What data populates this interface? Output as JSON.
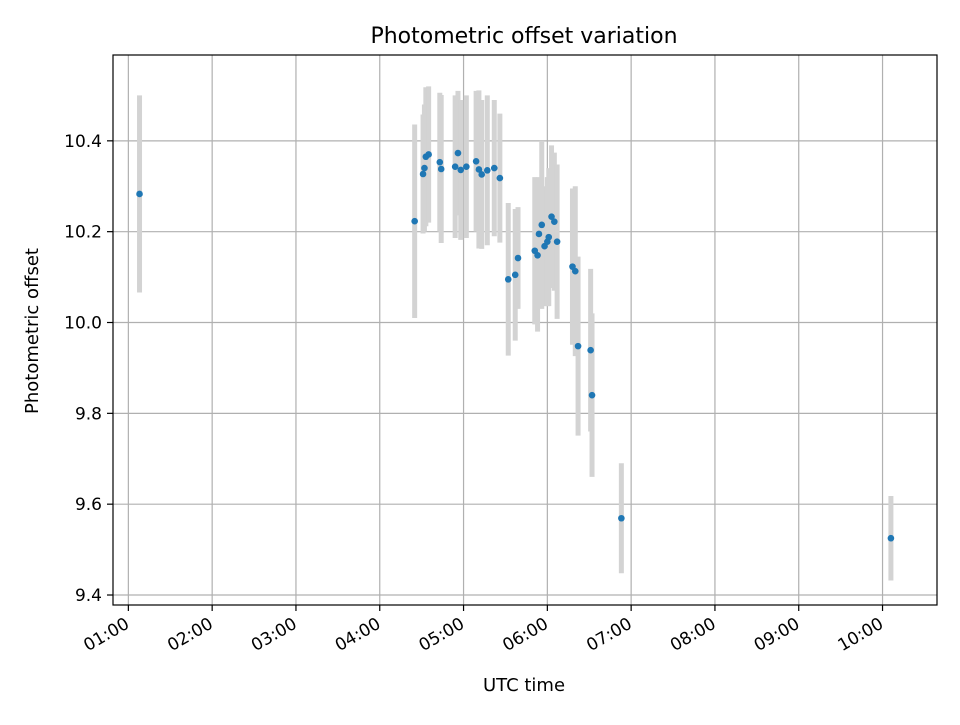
{
  "colors": {
    "point": "#1f77b4",
    "errorbar": "#d3d3d3",
    "grid": "#b0b0b0",
    "axes": "#000000",
    "background": "#ffffff"
  },
  "chart_data": {
    "type": "scatter",
    "title": "Photometric offset variation",
    "xlabel": "UTC time",
    "ylabel": "Photometric offset",
    "grid": true,
    "legend": "none",
    "xlim": [
      "00:49",
      "10:39"
    ],
    "ylim": [
      9.378,
      10.589
    ],
    "x_ticks": [
      "01:00",
      "02:00",
      "03:00",
      "04:00",
      "05:00",
      "06:00",
      "07:00",
      "08:00",
      "09:00",
      "10:00"
    ],
    "y_ticks": [
      "9.4",
      "9.6",
      "9.8",
      "10.0",
      "10.2",
      "10.4"
    ],
    "series": [
      {
        "error_bars": "symmetric",
        "points": [
          {
            "x": "01:08",
            "y": 10.283,
            "err": 0.217
          },
          {
            "x": "04:25",
            "y": 10.223,
            "err": 0.213
          },
          {
            "x": "04:31",
            "y": 10.327,
            "err": 0.131
          },
          {
            "x": "04:32",
            "y": 10.34,
            "err": 0.14
          },
          {
            "x": "04:33",
            "y": 10.365,
            "err": 0.153
          },
          {
            "x": "04:35",
            "y": 10.37,
            "err": 0.15
          },
          {
            "x": "04:43",
            "y": 10.353,
            "err": 0.153
          },
          {
            "x": "04:44",
            "y": 10.338,
            "err": 0.163
          },
          {
            "x": "04:54",
            "y": 10.343,
            "err": 0.157
          },
          {
            "x": "04:56",
            "y": 10.373,
            "err": 0.137
          },
          {
            "x": "04:58",
            "y": 10.336,
            "err": 0.154
          },
          {
            "x": "05:02",
            "y": 10.343,
            "err": 0.157
          },
          {
            "x": "05:09",
            "y": 10.355,
            "err": 0.155
          },
          {
            "x": "05:11",
            "y": 10.337,
            "err": 0.174
          },
          {
            "x": "05:13",
            "y": 10.326,
            "err": 0.164
          },
          {
            "x": "05:17",
            "y": 10.335,
            "err": 0.165
          },
          {
            "x": "05:22",
            "y": 10.34,
            "err": 0.15
          },
          {
            "x": "05:26",
            "y": 10.318,
            "err": 0.142
          },
          {
            "x": "05:32",
            "y": 10.095,
            "err": 0.168
          },
          {
            "x": "05:37",
            "y": 10.105,
            "err": 0.145
          },
          {
            "x": "05:39",
            "y": 10.142,
            "err": 0.112
          },
          {
            "x": "05:51",
            "y": 10.158,
            "err": 0.162
          },
          {
            "x": "05:53",
            "y": 10.148,
            "err": 0.168
          },
          {
            "x": "05:54",
            "y": 10.195,
            "err": 0.125
          },
          {
            "x": "05:56",
            "y": 10.215,
            "err": 0.185
          },
          {
            "x": "05:58",
            "y": 10.168,
            "err": 0.132
          },
          {
            "x": "06:00",
            "y": 10.178,
            "err": 0.142
          },
          {
            "x": "06:01",
            "y": 10.188,
            "err": 0.152
          },
          {
            "x": "06:03",
            "y": 10.233,
            "err": 0.157
          },
          {
            "x": "06:05",
            "y": 10.222,
            "err": 0.152
          },
          {
            "x": "06:07",
            "y": 10.178,
            "err": 0.17
          },
          {
            "x": "06:18",
            "y": 10.123,
            "err": 0.172
          },
          {
            "x": "06:20",
            "y": 10.113,
            "err": 0.187
          },
          {
            "x": "06:22",
            "y": 9.948,
            "err": 0.197
          },
          {
            "x": "06:31",
            "y": 9.939,
            "err": 0.179
          },
          {
            "x": "06:32",
            "y": 9.84,
            "err": 0.18
          },
          {
            "x": "06:53",
            "y": 9.569,
            "err": 0.121
          },
          {
            "x": "10:06",
            "y": 9.525,
            "err": 0.093
          }
        ]
      }
    ]
  }
}
